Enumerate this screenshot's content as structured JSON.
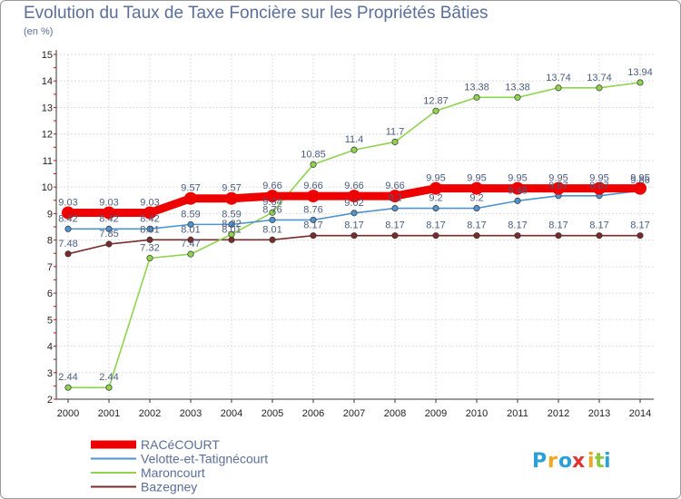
{
  "chart_data": {
    "type": "line",
    "title": "Evolution du Taux de Taxe Foncière sur les Propriétés Bâties",
    "ylabel": "(en %)",
    "xlabel": "",
    "ylim": [
      2,
      15
    ],
    "yticks": [
      2,
      3,
      4,
      5,
      6,
      7,
      8,
      9,
      10,
      11,
      12,
      13,
      14,
      15
    ],
    "x": [
      "2000",
      "2001",
      "2002",
      "2003",
      "2004",
      "2005",
      "2006",
      "2007",
      "2008",
      "2009",
      "2010",
      "2011",
      "2012",
      "2013",
      "2014"
    ],
    "grid": true,
    "legend_position": "bottom-left",
    "series": [
      {
        "name": "RACéCOURT",
        "color": "#ee0000",
        "values": [
          9.03,
          9.03,
          9.03,
          9.57,
          9.57,
          9.66,
          9.66,
          9.66,
          9.66,
          9.95,
          9.95,
          9.95,
          9.95,
          9.95,
          9.95
        ],
        "labels": [
          "9.03",
          "9.03",
          "9.03",
          "9.57",
          "9.57",
          "9.66",
          "9.66",
          "9.66",
          "9.66",
          "9.95",
          "9.95",
          "9.95",
          "9.95",
          "9.95",
          "9.95"
        ]
      },
      {
        "name": "Velotte-et-Tatignécourt",
        "color": "#4f93cf",
        "values": [
          8.42,
          8.42,
          8.42,
          8.59,
          8.59,
          8.76,
          8.76,
          9.02,
          9.2,
          9.2,
          9.2,
          9.48,
          9.67,
          9.67,
          9.86
        ],
        "labels": [
          "8.42",
          "8.42",
          "8.42",
          "8.59",
          "8.59",
          "8.76",
          "8.76",
          "9.02",
          "9.2",
          "9.2",
          "9.2",
          "9.48",
          "9.67",
          "9.67",
          "9.86"
        ]
      },
      {
        "name": "Maroncourt",
        "color": "#8fd34f",
        "values": [
          2.44,
          2.44,
          7.32,
          7.47,
          8.22,
          9.04,
          10.85,
          11.4,
          11.7,
          12.87,
          13.38,
          13.38,
          13.74,
          13.74,
          13.94
        ],
        "labels": [
          "2.44",
          "2.44",
          "7.32",
          "7.47",
          "8.22",
          "9.04",
          "10.85",
          "11.4",
          "11.7",
          "12.87",
          "13.38",
          "13.38",
          "13.74",
          "13.74",
          "13.94"
        ]
      },
      {
        "name": "Bazegney",
        "color": "#7a2b2b",
        "values": [
          7.48,
          7.85,
          8.01,
          8.01,
          8.01,
          8.01,
          8.17,
          8.17,
          8.17,
          8.17,
          8.17,
          8.17,
          8.17,
          8.17,
          8.17
        ],
        "labels": [
          "7.48",
          "7.85",
          "8.01",
          "8.01",
          "8.01",
          "8.01",
          "8.17",
          "8.17",
          "8.17",
          "8.17",
          "8.17",
          "8.17",
          "8.17",
          "8.17",
          "8.17"
        ]
      }
    ]
  },
  "logo": {
    "text": "Proxiti",
    "letters": [
      "P",
      "r",
      "o",
      "x",
      "i",
      "t",
      "i"
    ],
    "colors": [
      "#2a9fd8",
      "#f2a51f",
      "#2a9fd8",
      "#e03434",
      "#f2a51f",
      "#8dc63f",
      "#2a9fd8"
    ]
  }
}
